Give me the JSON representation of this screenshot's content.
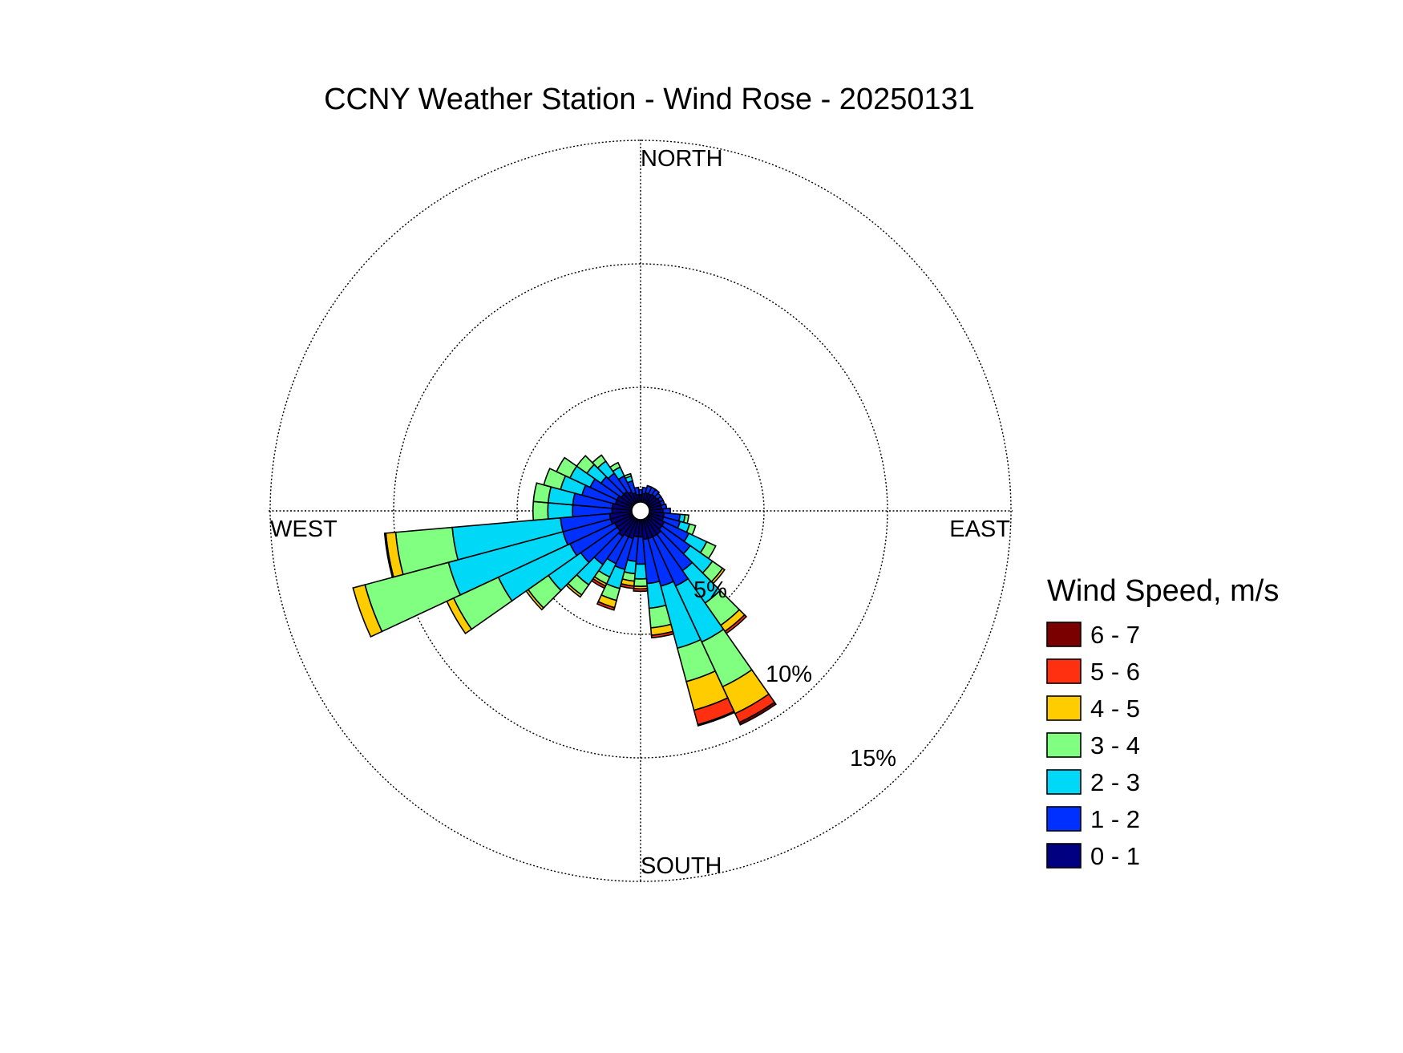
{
  "chart_data": {
    "type": "polar-bar",
    "title": "CCNY Weather Station - Wind Rose - 20250131",
    "directions": {
      "north": "NORTH",
      "south": "SOUTH",
      "east": "EAST",
      "west": "WEST"
    },
    "radial_ticks": [
      {
        "value": 5,
        "label": "5%"
      },
      {
        "value": 10,
        "label": "10%"
      },
      {
        "value": 15,
        "label": "15%"
      }
    ],
    "rmax": 15,
    "sector_width_deg": 10,
    "grid": true,
    "legend": {
      "title": "Wind Speed, m/s",
      "placement": "right",
      "bins": [
        {
          "label": "6 - 7",
          "color": "#7a0000"
        },
        {
          "label": "5 - 6",
          "color": "#ff3010"
        },
        {
          "label": "4 - 5",
          "color": "#ffcc00"
        },
        {
          "label": "3 - 4",
          "color": "#80ff80"
        },
        {
          "label": "2 - 3",
          "color": "#00d8f8"
        },
        {
          "label": "1 - 2",
          "color": "#0030ff"
        },
        {
          "label": "0 - 1",
          "color": "#000080"
        }
      ]
    },
    "bin_order_inner_to_outer": [
      "0 - 1",
      "1 - 2",
      "2 - 3",
      "3 - 4",
      "4 - 5",
      "5 - 6",
      "6 - 7"
    ],
    "sectors": [
      {
        "dir": 0,
        "values": [
          0.3,
          0.2,
          0,
          0,
          0,
          0,
          0
        ]
      },
      {
        "dir": 10,
        "values": [
          0.35,
          0.25,
          0,
          0,
          0,
          0,
          0
        ]
      },
      {
        "dir": 20,
        "values": [
          0.4,
          0.3,
          0,
          0,
          0,
          0,
          0
        ]
      },
      {
        "dir": 30,
        "values": [
          0.4,
          0.3,
          0,
          0,
          0,
          0,
          0
        ]
      },
      {
        "dir": 40,
        "values": [
          0.45,
          0.25,
          0,
          0,
          0,
          0,
          0
        ]
      },
      {
        "dir": 50,
        "values": [
          0.45,
          0.2,
          0,
          0,
          0,
          0,
          0
        ]
      },
      {
        "dir": 60,
        "values": [
          0.5,
          0.15,
          0,
          0,
          0,
          0,
          0
        ]
      },
      {
        "dir": 70,
        "values": [
          0.5,
          0.15,
          0,
          0,
          0,
          0,
          0
        ]
      },
      {
        "dir": 80,
        "values": [
          0.5,
          0.2,
          0,
          0,
          0,
          0,
          0
        ]
      },
      {
        "dir": 90,
        "values": [
          0.55,
          0.3,
          0,
          0,
          0,
          0,
          0
        ]
      },
      {
        "dir": 100,
        "values": [
          0.6,
          0.65,
          0.2,
          0.15,
          0,
          0,
          0
        ]
      },
      {
        "dir": 110,
        "values": [
          0.6,
          0.7,
          0.4,
          0.25,
          0,
          0,
          0
        ]
      },
      {
        "dir": 120,
        "values": [
          0.7,
          1.1,
          0.8,
          0.4,
          0,
          0,
          0
        ]
      },
      {
        "dir": 130,
        "values": [
          0.7,
          1.4,
          1.1,
          0.5,
          0.1,
          0,
          0
        ]
      },
      {
        "dir": 140,
        "values": [
          0.8,
          1.8,
          1.6,
          1.1,
          0.3,
          0.1,
          0
        ]
      },
      {
        "dir": 150,
        "values": [
          0.8,
          2.2,
          2.5,
          2.0,
          1.2,
          0.4,
          0.1
        ]
      },
      {
        "dir": 160,
        "values": [
          0.8,
          2.0,
          2.6,
          1.4,
          1.2,
          0.6,
          0.05
        ]
      },
      {
        "dir": 170,
        "values": [
          0.8,
          1.8,
          1.0,
          0.8,
          0.3,
          0.1,
          0
        ]
      },
      {
        "dir": 180,
        "values": [
          0.7,
          1.1,
          0.6,
          0.3,
          0.1,
          0.1,
          0
        ]
      },
      {
        "dir": 190,
        "values": [
          0.7,
          1.0,
          0.5,
          0.3,
          0.2,
          0.1,
          0
        ]
      },
      {
        "dir": 200,
        "values": [
          0.8,
          1.3,
          0.8,
          0.5,
          0.3,
          0.1,
          0
        ]
      },
      {
        "dir": 210,
        "values": [
          0.8,
          1.2,
          0.6,
          0.3,
          0.1,
          0.1,
          0
        ]
      },
      {
        "dir": 220,
        "values": [
          0.9,
          1.4,
          1.0,
          0.5,
          0.1,
          0,
          0
        ]
      },
      {
        "dir": 230,
        "values": [
          0.8,
          1.8,
          1.6,
          1.0,
          0.1,
          0,
          0
        ]
      },
      {
        "dir": 240,
        "values": [
          0.8,
          2.0,
          3.2,
          2.0,
          0.3,
          0,
          0
        ]
      },
      {
        "dir": 250,
        "values": [
          0.9,
          2.0,
          4.8,
          3.5,
          0.5,
          0,
          0
        ]
      },
      {
        "dir": 260,
        "values": [
          0.9,
          2.0,
          4.4,
          2.3,
          0.4,
          0.05,
          0
        ]
      },
      {
        "dir": 270,
        "values": [
          0.8,
          1.6,
          1.0,
          0.6,
          0,
          0,
          0
        ]
      },
      {
        "dir": 280,
        "values": [
          0.8,
          1.6,
          1.0,
          0.6,
          0,
          0,
          0
        ]
      },
      {
        "dir": 290,
        "values": [
          0.7,
          1.4,
          0.9,
          0.7,
          0,
          0,
          0
        ]
      },
      {
        "dir": 300,
        "values": [
          0.7,
          1.2,
          0.9,
          0.6,
          0,
          0,
          0
        ]
      },
      {
        "dir": 310,
        "values": [
          0.6,
          1.0,
          0.7,
          0.5,
          0,
          0,
          0
        ]
      },
      {
        "dir": 320,
        "values": [
          0.6,
          0.9,
          0.6,
          0.3,
          0,
          0,
          0
        ]
      },
      {
        "dir": 330,
        "values": [
          0.5,
          0.7,
          0.4,
          0.2,
          0,
          0,
          0
        ]
      },
      {
        "dir": 340,
        "values": [
          0.4,
          0.5,
          0.2,
          0.1,
          0,
          0,
          0
        ]
      },
      {
        "dir": 350,
        "values": [
          0.3,
          0.3,
          0,
          0,
          0,
          0,
          0
        ]
      }
    ]
  }
}
